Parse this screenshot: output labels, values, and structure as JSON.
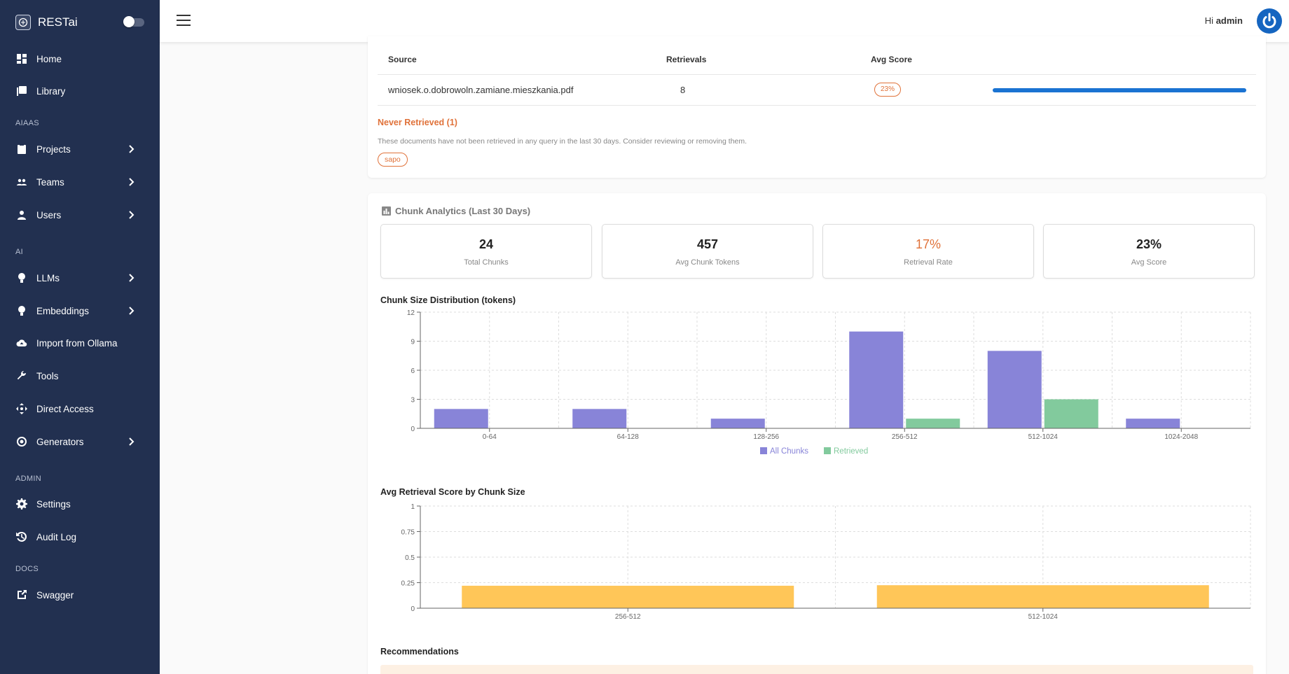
{
  "app": {
    "name": "RESTai"
  },
  "user": {
    "greeting": "Hi",
    "name": "admin"
  },
  "sidebar": {
    "sections": {
      "aiaas": "AIAAS",
      "ai": "AI",
      "admin": "ADMIN",
      "docs": "DOCS"
    },
    "items": [
      {
        "label": "Home",
        "icon": "dashboard-icon"
      },
      {
        "label": "Library",
        "icon": "library-icon"
      },
      {
        "label": "Projects",
        "icon": "clipboard-icon"
      },
      {
        "label": "Teams",
        "icon": "groups-icon"
      },
      {
        "label": "Users",
        "icon": "person-icon"
      },
      {
        "label": "LLMs",
        "icon": "lightbulb-icon"
      },
      {
        "label": "Embeddings",
        "icon": "lightbulb-icon"
      },
      {
        "label": "Import from Ollama",
        "icon": "cloud-upload-icon"
      },
      {
        "label": "Tools",
        "icon": "wrench-icon"
      },
      {
        "label": "Direct Access",
        "icon": "arrows-icon"
      },
      {
        "label": "Generators",
        "icon": "gear-icon"
      },
      {
        "label": "Settings",
        "icon": "settings-icon"
      },
      {
        "label": "Audit Log",
        "icon": "history-icon"
      },
      {
        "label": "Swagger",
        "icon": "external-link-icon"
      }
    ]
  },
  "sources_table": {
    "headers": {
      "source": "Source",
      "retrievals": "Retrievals",
      "avg_score": "Avg Score"
    },
    "rows": [
      {
        "source": "wniosek.o.dobrowoln.zamiane.mieszkania.pdf",
        "retrievals": "8",
        "avg_score": "23%",
        "bar_fraction": 1.0
      }
    ]
  },
  "never_retrieved": {
    "title": "Never Retrieved (1)",
    "description": "These documents have not been retrieved in any query in the last 30 days. Consider reviewing or removing them.",
    "docs": [
      "sapo"
    ]
  },
  "chunk_analytics": {
    "title": "Chunk Analytics (Last 30 Days)",
    "stats": [
      {
        "value": "24",
        "label": "Total Chunks"
      },
      {
        "value": "457",
        "label": "Avg Chunk Tokens"
      },
      {
        "value": "17%",
        "label": "Retrieval Rate"
      },
      {
        "value": "23%",
        "label": "Avg Score"
      }
    ],
    "recommendations_title": "Recommendations"
  },
  "colors": {
    "all_chunks": "#8884d8",
    "retrieved": "#82ca9d",
    "score": "#ffc658",
    "warn": "#e0723a",
    "sidebar": "#223050"
  },
  "chart_data": [
    {
      "type": "bar",
      "title": "Chunk Size Distribution (tokens)",
      "categories": [
        "0-64",
        "64-128",
        "128-256",
        "256-512",
        "512-1024",
        "1024-2048"
      ],
      "series": [
        {
          "name": "All Chunks",
          "values": [
            2,
            2,
            1,
            10,
            8,
            1
          ]
        },
        {
          "name": "Retrieved",
          "values": [
            0,
            0,
            0,
            1,
            3,
            0
          ]
        }
      ],
      "ylim": [
        0,
        12
      ],
      "yticks": [
        0,
        3,
        6,
        9,
        12
      ],
      "grid": true,
      "legend": "bottom"
    },
    {
      "type": "bar",
      "title": "Avg Retrieval Score by Chunk Size",
      "categories": [
        "256-512",
        "512-1024"
      ],
      "series": [
        {
          "values": [
            0.22,
            0.225
          ]
        }
      ],
      "ylim": [
        0,
        1
      ],
      "yticks": [
        "0",
        "0.25",
        "0.5",
        "0.75",
        "1"
      ],
      "grid": true
    }
  ]
}
